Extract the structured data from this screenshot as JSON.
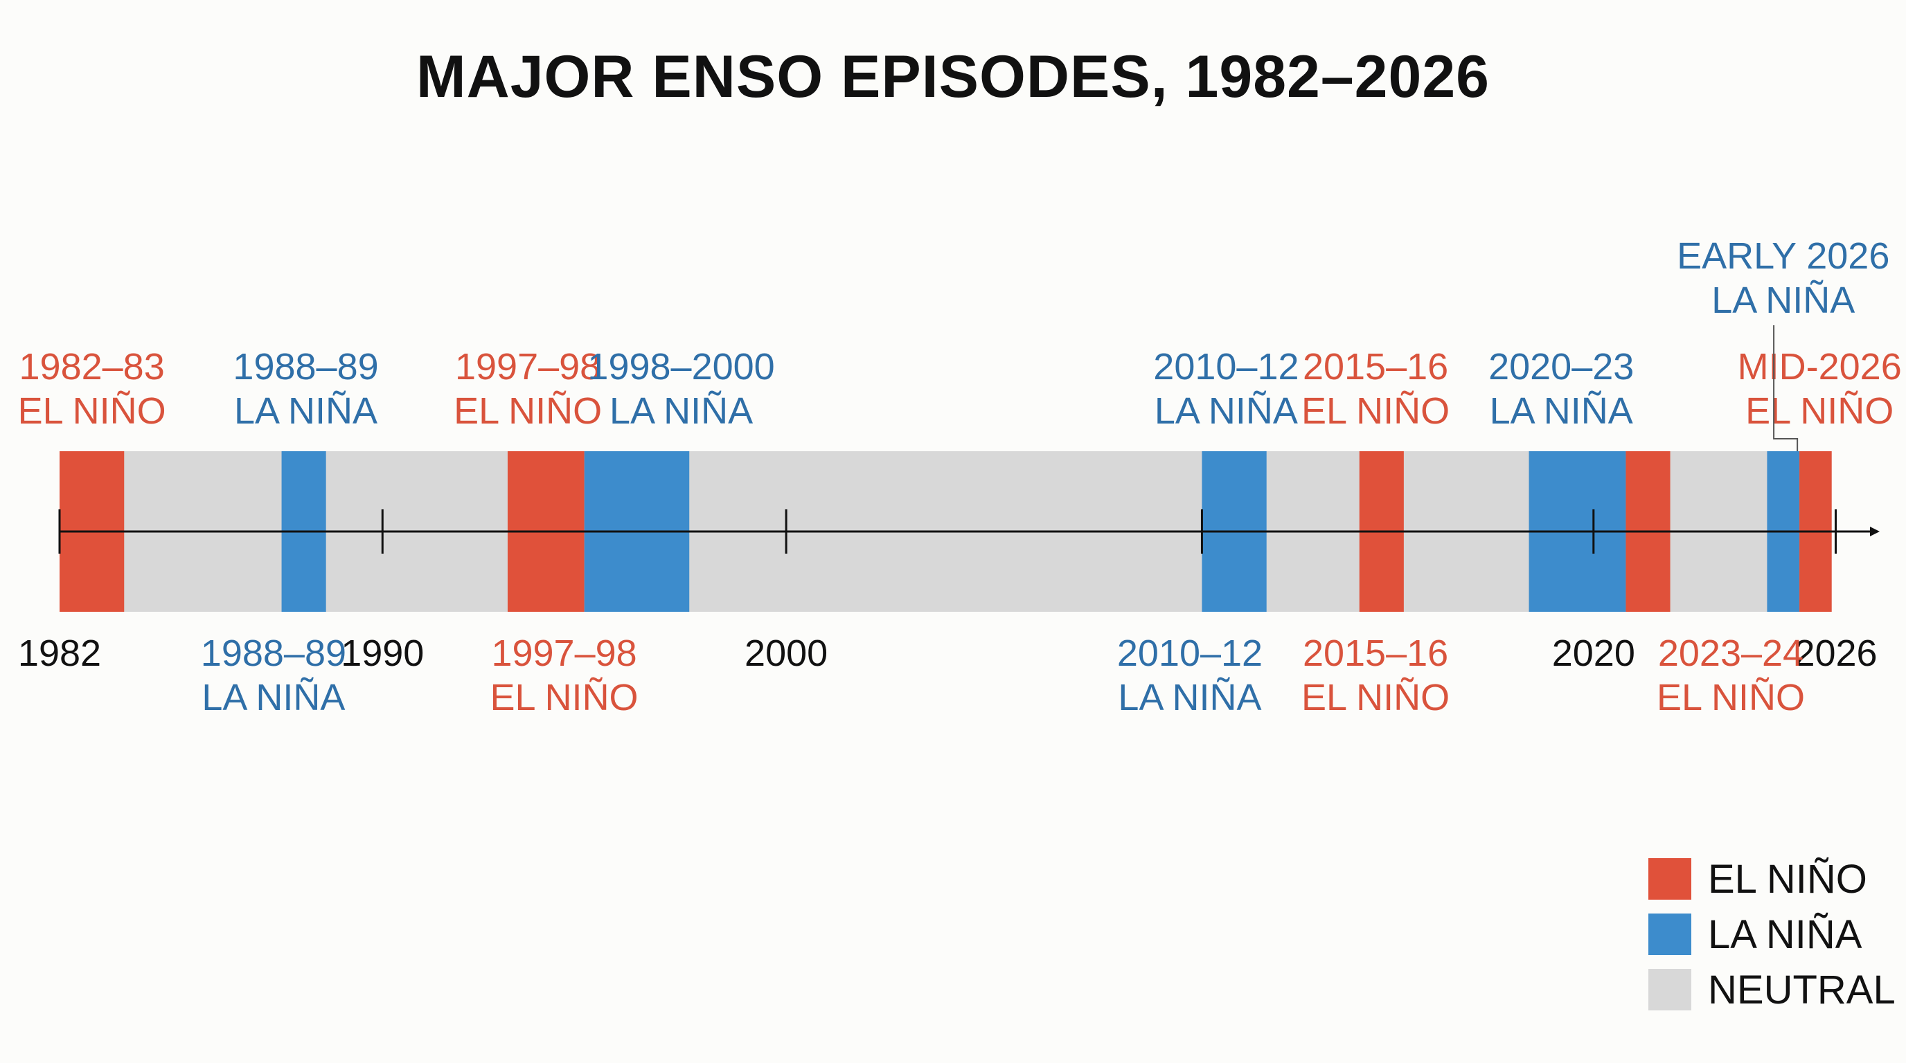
{
  "title": "MAJOR ENSO EPISODES, 1982–2026",
  "colors": {
    "el_nino": "#e0513a",
    "la_nina": "#3d8ccc",
    "neutral": "#d8d8d8",
    "el_nino_text": "#d9533c",
    "la_nina_text": "#2f6fa8",
    "axis": "#111111"
  },
  "legend": [
    {
      "label": "EL NIÑO",
      "kind": "el_nino"
    },
    {
      "label": "LA NIÑA",
      "kind": "la_nina"
    },
    {
      "label": "NEUTRAL",
      "kind": "neutral"
    }
  ],
  "chart_data": {
    "type": "timeline",
    "x_range": [
      1982,
      2026.3
    ],
    "ticks": [
      {
        "label": "1982",
        "value": 1982
      },
      {
        "label": "1990",
        "value": 1990
      },
      {
        "label": "2000",
        "value": 2000
      },
      {
        "label": "2020",
        "value": 2020
      },
      {
        "label": "2026",
        "value": 2026
      }
    ],
    "extra_tick_values": [
      2010.3
    ],
    "segments": [
      {
        "kind": "el_nino",
        "start": 1982.0,
        "end": 1983.6
      },
      {
        "kind": "la_nina",
        "start": 1987.5,
        "end": 1988.6
      },
      {
        "kind": "el_nino",
        "start": 1993.1,
        "end": 1995.0
      },
      {
        "kind": "la_nina",
        "start": 1995.0,
        "end": 1997.6
      },
      {
        "kind": "la_nina",
        "start": 2010.3,
        "end": 2011.9
      },
      {
        "kind": "el_nino",
        "start": 2014.2,
        "end": 2015.3
      },
      {
        "kind": "la_nina",
        "start": 2018.4,
        "end": 2020.8
      },
      {
        "kind": "el_nino",
        "start": 2020.8,
        "end": 2021.9
      },
      {
        "kind": "la_nina",
        "start": 2024.3,
        "end": 2025.1
      },
      {
        "kind": "el_nino",
        "start": 2025.1,
        "end": 2025.9
      }
    ],
    "labels_above": [
      {
        "lines": [
          "1982–83",
          "EL NIÑO"
        ],
        "kind": "el_nino",
        "value": 1982.8
      },
      {
        "lines": [
          "1988–89",
          "LA NIÑA"
        ],
        "kind": "la_nina",
        "value": 1988.1
      },
      {
        "lines": [
          "1997–98",
          "EL NIÑO"
        ],
        "kind": "el_nino",
        "value": 1993.6
      },
      {
        "lines": [
          "1998–2000",
          "LA NIÑA"
        ],
        "kind": "la_nina",
        "value": 1997.4
      },
      {
        "lines": [
          "2010–12",
          "LA NIÑA"
        ],
        "kind": "la_nina",
        "value": 2010.9
      },
      {
        "lines": [
          "2015–16",
          "EL NIÑO"
        ],
        "kind": "el_nino",
        "value": 2014.6
      },
      {
        "lines": [
          "2020–23",
          "LA NIÑA"
        ],
        "kind": "la_nina",
        "value": 2019.2
      },
      {
        "lines": [
          "MID-2026",
          "EL NIÑO"
        ],
        "kind": "el_nino",
        "value": 2025.6
      }
    ],
    "labels_top": [
      {
        "lines": [
          "EARLY 2026",
          "LA NIÑA"
        ],
        "kind": "la_nina",
        "value": 2024.7,
        "leader_to": 2024.5
      }
    ],
    "labels_below": [
      {
        "lines": [
          "1988–89",
          "LA NIÑA"
        ],
        "kind": "la_nina",
        "value": 1987.3
      },
      {
        "lines": [
          "1997–98",
          "EL NIÑO"
        ],
        "kind": "el_nino",
        "value": 1994.5
      },
      {
        "lines": [
          "2010–12",
          "LA NIÑA"
        ],
        "kind": "la_nina",
        "value": 2010.0
      },
      {
        "lines": [
          "2015–16",
          "EL NIÑO"
        ],
        "kind": "el_nino",
        "value": 2014.6
      },
      {
        "lines": [
          "2023–24",
          "EL NIÑO"
        ],
        "kind": "el_nino",
        "value": 2023.4
      }
    ]
  }
}
